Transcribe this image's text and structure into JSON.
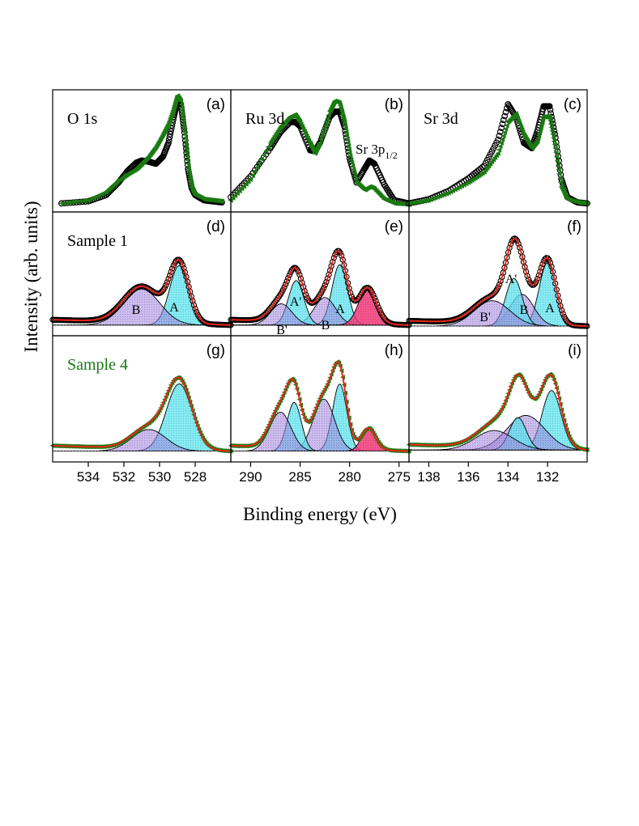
{
  "figure": {
    "ylabel": "Intensity (arb. units)",
    "xlabel": "Binding energy (eV)"
  },
  "colors": {
    "sample1_marker": "#000000",
    "sample4_marker": "#1a7a12",
    "fit_line": "#e8261a",
    "component_A": "#55e4ee",
    "component_B": "#9a78d8",
    "component_Sr3p": "#f03878",
    "sample4_label": "#1a7a12"
  },
  "columns": [
    {
      "id": "o1s",
      "ticks": [
        "534",
        "532",
        "530",
        "528"
      ]
    },
    {
      "id": "ru3d",
      "ticks": [
        "290",
        "285",
        "280",
        "275"
      ]
    },
    {
      "id": "sr3d",
      "ticks": [
        "138",
        "136",
        "134",
        "132"
      ]
    }
  ],
  "panels": [
    {
      "id": "a",
      "tag": "(a)",
      "title": "O 1s"
    },
    {
      "id": "b",
      "tag": "(b)",
      "title": "Ru 3d",
      "note": "Sr 3p",
      "note_sub": "1/2"
    },
    {
      "id": "c",
      "tag": "(c)",
      "title": "Sr 3d"
    },
    {
      "id": "d",
      "tag": "(d)",
      "title": "Sample 1",
      "peak_labels": [
        "A",
        "B"
      ]
    },
    {
      "id": "e",
      "tag": "(e)",
      "peak_labels": [
        "A'",
        "B'",
        "A",
        "B"
      ]
    },
    {
      "id": "f",
      "tag": "(f)",
      "peak_labels": [
        "A'",
        "B'",
        "A",
        "B"
      ]
    },
    {
      "id": "g",
      "tag": "(g)",
      "title": "Sample 4"
    },
    {
      "id": "h",
      "tag": "(h)"
    },
    {
      "id": "i",
      "tag": "(i)"
    }
  ],
  "chart_data": [
    {
      "type": "line",
      "panel": "a",
      "title": "O 1s",
      "xlim": [
        536,
        526
      ],
      "x": [
        535.5,
        534,
        533,
        532.3,
        531.8,
        531.3,
        531,
        530.6,
        530.2,
        529.8,
        529.5,
        529.2,
        529,
        528.8,
        528.6,
        528.4,
        528.2,
        528,
        527.5,
        527,
        526.5
      ],
      "series": [
        {
          "name": "Sample 1",
          "values": [
            0.02,
            0.04,
            0.1,
            0.22,
            0.33,
            0.41,
            0.43,
            0.42,
            0.4,
            0.47,
            0.6,
            0.85,
            1.0,
            0.97,
            0.7,
            0.35,
            0.17,
            0.1,
            0.05,
            0.04,
            0.03
          ]
        },
        {
          "name": "Sample 4",
          "values": [
            0.02,
            0.05,
            0.13,
            0.24,
            0.3,
            0.35,
            0.4,
            0.47,
            0.56,
            0.68,
            0.78,
            0.93,
            1.05,
            1.0,
            0.72,
            0.4,
            0.18,
            0.1,
            0.06,
            0.05,
            0.04
          ]
        }
      ]
    },
    {
      "type": "line",
      "panel": "b",
      "title": "Ru 3d",
      "xlim": [
        292,
        274
      ],
      "x": [
        292,
        290,
        288,
        287,
        286,
        285.5,
        285,
        284,
        283.5,
        283,
        282,
        281.5,
        281,
        280.5,
        280,
        279.3,
        278.5,
        278,
        277.5,
        276.5,
        275.5,
        274
      ],
      "series": [
        {
          "name": "Sample 1",
          "values": [
            0.08,
            0.28,
            0.55,
            0.7,
            0.8,
            0.8,
            0.76,
            0.53,
            0.52,
            0.6,
            0.85,
            0.9,
            0.9,
            0.75,
            0.45,
            0.22,
            0.35,
            0.43,
            0.4,
            0.2,
            0.05,
            0.02
          ]
        },
        {
          "name": "Sample 4",
          "values": [
            0.05,
            0.25,
            0.6,
            0.75,
            0.85,
            0.87,
            0.8,
            0.6,
            0.5,
            0.6,
            0.9,
            1.0,
            0.98,
            0.8,
            0.5,
            0.22,
            0.15,
            0.18,
            0.16,
            0.06,
            0.02,
            0.01
          ]
        }
      ]
    },
    {
      "type": "line",
      "panel": "c",
      "title": "Sr 3d",
      "xlim": [
        139,
        130
      ],
      "x": [
        139,
        138,
        137,
        136,
        135.2,
        134.5,
        134,
        133.6,
        133.2,
        132.8,
        132.5,
        132.2,
        131.9,
        131.6,
        131.3,
        131,
        130.5,
        130
      ],
      "series": [
        {
          "name": "Sample 1",
          "values": [
            0.02,
            0.06,
            0.14,
            0.26,
            0.38,
            0.63,
            0.97,
            0.85,
            0.6,
            0.55,
            0.72,
            0.95,
            0.95,
            0.65,
            0.25,
            0.08,
            0.03,
            0.02
          ]
        },
        {
          "name": "Sample 4",
          "values": [
            0.02,
            0.05,
            0.12,
            0.22,
            0.32,
            0.5,
            0.8,
            0.88,
            0.68,
            0.55,
            0.62,
            0.85,
            0.85,
            0.55,
            0.18,
            0.06,
            0.03,
            0.02
          ]
        }
      ]
    },
    {
      "type": "area",
      "panel": "d",
      "title": "Sample 1",
      "xlim": [
        536,
        526
      ],
      "components": [
        {
          "name": "A",
          "center": 528.9,
          "height": 0.56,
          "width": 0.9
        },
        {
          "name": "B",
          "center": 531.0,
          "height": 0.34,
          "width": 1.7
        }
      ],
      "background": 0.04,
      "data_points": "Sample 1",
      "fit": true
    },
    {
      "type": "area",
      "panel": "e",
      "xlim": [
        292,
        274
      ],
      "components": [
        {
          "name": "A",
          "center": 281.0,
          "height": 0.57,
          "width": 1.3
        },
        {
          "name": "B",
          "center": 282.5,
          "height": 0.26,
          "width": 1.8
        },
        {
          "name": "A'",
          "center": 285.4,
          "height": 0.42,
          "width": 1.3
        },
        {
          "name": "B'",
          "center": 286.9,
          "height": 0.2,
          "width": 1.8
        },
        {
          "name": "Sr 3p1/2",
          "center": 278.2,
          "height": 0.34,
          "width": 1.5
        }
      ],
      "background": 0.04,
      "data_points": "Sample 1",
      "fit": true
    },
    {
      "type": "area",
      "panel": "f",
      "xlim": [
        139,
        130
      ],
      "components": [
        {
          "name": "A",
          "center": 132.0,
          "height": 0.6,
          "width": 0.7
        },
        {
          "name": "B",
          "center": 133.3,
          "height": 0.3,
          "width": 1.0
        },
        {
          "name": "A'",
          "center": 133.7,
          "height": 0.45,
          "width": 0.7
        },
        {
          "name": "B'",
          "center": 134.8,
          "height": 0.24,
          "width": 1.5
        }
      ],
      "background": 0.03,
      "data_points": "Sample 1",
      "fit": true
    },
    {
      "type": "area",
      "panel": "g",
      "title": "Sample 4",
      "xlim": [
        536,
        526
      ],
      "components": [
        {
          "name": "A",
          "center": 528.9,
          "height": 0.62,
          "width": 1.2
        },
        {
          "name": "B",
          "center": 530.6,
          "height": 0.2,
          "width": 1.6
        }
      ],
      "background": 0.04,
      "data_points": "Sample 4",
      "fit": true
    },
    {
      "type": "area",
      "panel": "h",
      "xlim": [
        292,
        274
      ],
      "components": [
        {
          "name": "A",
          "center": 281.0,
          "height": 0.62,
          "width": 1.2
        },
        {
          "name": "B",
          "center": 282.6,
          "height": 0.48,
          "width": 1.8
        },
        {
          "name": "A'",
          "center": 285.6,
          "height": 0.45,
          "width": 1.2
        },
        {
          "name": "B'",
          "center": 287.0,
          "height": 0.36,
          "width": 1.8
        },
        {
          "name": "Sr 3p1/2",
          "center": 278.1,
          "height": 0.2,
          "width": 1.2
        }
      ],
      "background": 0.04,
      "data_points": "Sample 4",
      "fit": true
    },
    {
      "type": "area",
      "panel": "i",
      "xlim": [
        139,
        130
      ],
      "components": [
        {
          "name": "A",
          "center": 131.8,
          "height": 0.55,
          "width": 0.8
        },
        {
          "name": "B",
          "center": 133.1,
          "height": 0.32,
          "width": 1.6
        },
        {
          "name": "A'",
          "center": 133.5,
          "height": 0.3,
          "width": 0.7
        },
        {
          "name": "B'",
          "center": 134.7,
          "height": 0.18,
          "width": 1.6
        }
      ],
      "background": 0.05,
      "data_points": "Sample 4",
      "fit": true
    }
  ]
}
